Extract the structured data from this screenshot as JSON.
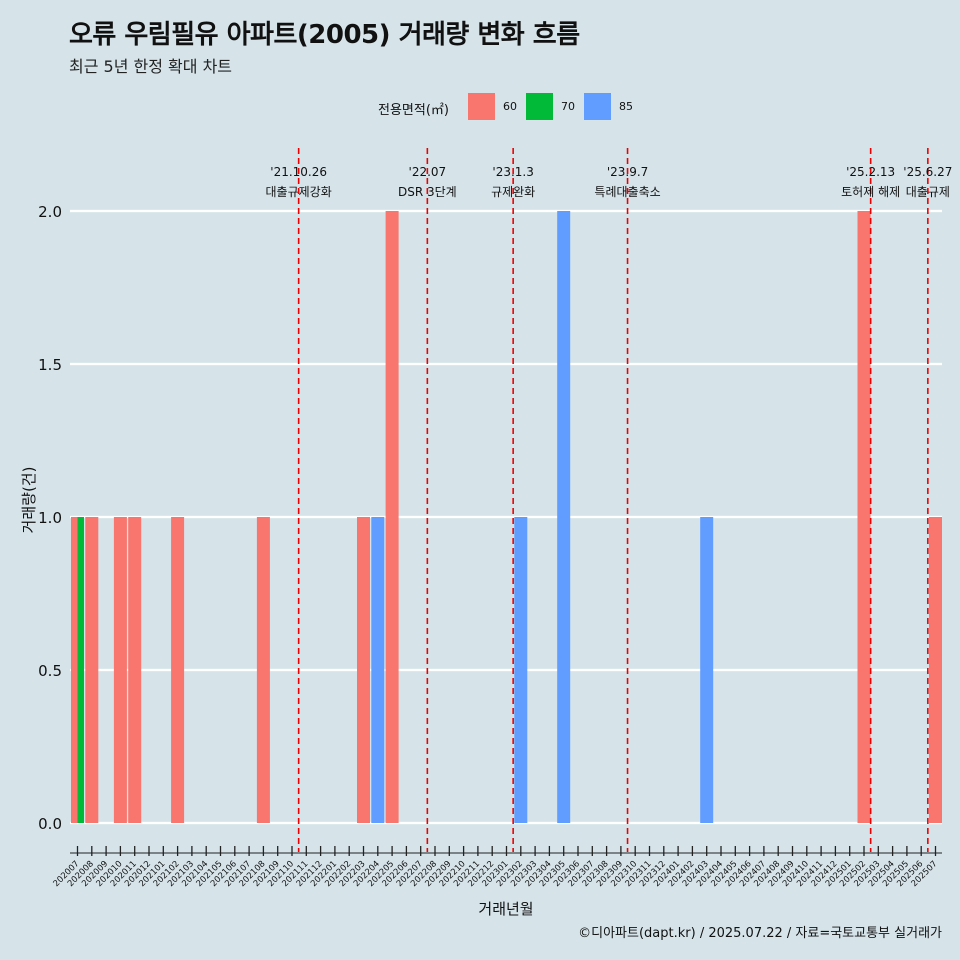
{
  "title": "오류 우림필유 아파트(2005) 거래량 변화 흐름",
  "subtitle": "최근 5년 한정 확대 차트",
  "caption": "©디아파트(dapt.kr) / 2025.07.22 / 자료=국토교통부 실거래가",
  "legend": {
    "title": "전용면적(㎡)",
    "items": [
      {
        "label": "60",
        "color": "#f8766d"
      },
      {
        "label": "70",
        "color": "#00ba38"
      },
      {
        "label": "85",
        "color": "#619cff"
      }
    ]
  },
  "chart_data": {
    "type": "bar",
    "xlabel": "거래년월",
    "ylabel": "거래량(건)",
    "ylim": [
      0,
      2.2
    ],
    "yticks": [
      "0.0",
      "0.5",
      "1.0",
      "1.5",
      "2.0"
    ],
    "categories": [
      "202007",
      "202008",
      "202009",
      "202010",
      "202011",
      "202012",
      "202101",
      "202102",
      "202103",
      "202104",
      "202105",
      "202106",
      "202107",
      "202108",
      "202109",
      "202110",
      "202111",
      "202112",
      "202201",
      "202202",
      "202203",
      "202204",
      "202205",
      "202206",
      "202207",
      "202208",
      "202209",
      "202210",
      "202211",
      "202212",
      "202301",
      "202302",
      "202303",
      "202304",
      "202305",
      "202306",
      "202307",
      "202308",
      "202309",
      "202310",
      "202311",
      "202312",
      "202401",
      "202402",
      "202403",
      "202404",
      "202405",
      "202406",
      "202407",
      "202408",
      "202409",
      "202410",
      "202411",
      "202412",
      "202501",
      "202502",
      "202503",
      "202504",
      "202505",
      "202506",
      "202507"
    ],
    "bars": [
      {
        "month": "202007",
        "area": "60",
        "value": 1
      },
      {
        "month": "202007",
        "area": "70",
        "value": 1
      },
      {
        "month": "202008",
        "area": "60",
        "value": 1
      },
      {
        "month": "202010",
        "area": "60",
        "value": 1
      },
      {
        "month": "202011",
        "area": "60",
        "value": 1
      },
      {
        "month": "202102",
        "area": "60",
        "value": 1
      },
      {
        "month": "202108",
        "area": "60",
        "value": 1
      },
      {
        "month": "202203",
        "area": "60",
        "value": 1
      },
      {
        "month": "202204",
        "area": "85",
        "value": 1
      },
      {
        "month": "202205",
        "area": "60",
        "value": 2
      },
      {
        "month": "202302",
        "area": "85",
        "value": 1
      },
      {
        "month": "202305",
        "area": "85",
        "value": 2
      },
      {
        "month": "202403",
        "area": "85",
        "value": 1
      },
      {
        "month": "202502",
        "area": "60",
        "value": 2
      },
      {
        "month": "202507",
        "area": "60",
        "value": 1
      }
    ],
    "events": [
      {
        "month": "202110",
        "date": "'21.10.26",
        "label": "대출규제강화"
      },
      {
        "month": "202207",
        "date": "'22.07",
        "label": "DSR 3단계"
      },
      {
        "month": "202301",
        "date": "'23.1.3",
        "label": "규제완화"
      },
      {
        "month": "202309",
        "date": "'23.9.7",
        "label": "특례대출축소"
      },
      {
        "month": "202502",
        "date": "'25.2.13",
        "label": "토허제 해제"
      },
      {
        "month": "202506",
        "date": "'25.6.27",
        "label": "대출규제"
      }
    ]
  }
}
